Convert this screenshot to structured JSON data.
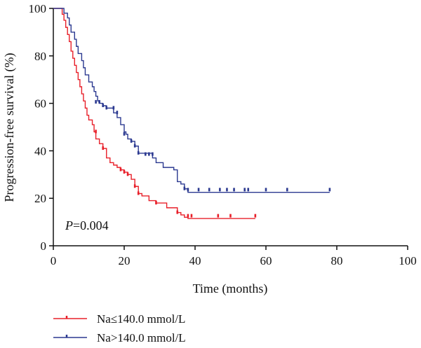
{
  "chart_data": {
    "type": "line",
    "subtype": "kaplan-meier",
    "title": "",
    "xlabel": "Time (months)",
    "ylabel": "Progression-free survival (%)",
    "xlim": [
      0,
      100
    ],
    "ylim": [
      0,
      100
    ],
    "xticks": [
      "0",
      "20",
      "40",
      "60",
      "80",
      "100"
    ],
    "yticks": [
      "0",
      "20",
      "40",
      "60",
      "80",
      "100"
    ],
    "grid": false,
    "legend_position": "bottom-left",
    "annotation": {
      "italic": "P",
      "rest": "=0.004"
    },
    "series": [
      {
        "name": "Na≤140.0 mmol/L",
        "color": "#e8202a",
        "steps": [
          [
            0,
            100
          ],
          [
            2,
            100
          ],
          [
            2.5,
            97.5
          ],
          [
            3,
            95
          ],
          [
            3.5,
            92
          ],
          [
            4,
            89
          ],
          [
            4.5,
            86
          ],
          [
            5,
            82
          ],
          [
            5.5,
            79
          ],
          [
            6,
            76
          ],
          [
            6.5,
            73
          ],
          [
            7,
            70
          ],
          [
            7.5,
            67
          ],
          [
            8,
            64
          ],
          [
            8.5,
            61
          ],
          [
            9,
            58
          ],
          [
            9.5,
            55
          ],
          [
            10,
            53
          ],
          [
            11,
            51
          ],
          [
            11.5,
            48
          ],
          [
            12,
            45
          ],
          [
            13,
            43
          ],
          [
            14,
            41
          ],
          [
            15,
            37
          ],
          [
            16,
            35
          ],
          [
            17,
            34
          ],
          [
            18,
            33
          ],
          [
            19,
            32
          ],
          [
            20,
            31
          ],
          [
            21,
            30
          ],
          [
            22,
            28
          ],
          [
            23,
            25
          ],
          [
            24,
            22
          ],
          [
            25,
            21
          ],
          [
            27,
            19
          ],
          [
            29,
            18
          ],
          [
            32,
            16
          ],
          [
            35,
            14
          ],
          [
            36,
            13
          ],
          [
            37,
            12
          ],
          [
            38,
            11.5
          ],
          [
            57,
            11.5
          ]
        ],
        "censored": [
          [
            12,
            48
          ],
          [
            14,
            41
          ],
          [
            19,
            32
          ],
          [
            20,
            31
          ],
          [
            21,
            30
          ],
          [
            23,
            25
          ],
          [
            24,
            22
          ],
          [
            29,
            18
          ],
          [
            35,
            14
          ],
          [
            38,
            12.5
          ],
          [
            39,
            12.5
          ],
          [
            46.5,
            12.5
          ],
          [
            50,
            12.5
          ],
          [
            57,
            12.5
          ]
        ]
      },
      {
        "name": "Na>140.0 mmol/L",
        "color": "#2b3990",
        "steps": [
          [
            0,
            100
          ],
          [
            2,
            100
          ],
          [
            3,
            98
          ],
          [
            4,
            96
          ],
          [
            4.5,
            93
          ],
          [
            5,
            90
          ],
          [
            6,
            87
          ],
          [
            6.5,
            84
          ],
          [
            7,
            81
          ],
          [
            8,
            78
          ],
          [
            8.5,
            75
          ],
          [
            9,
            72
          ],
          [
            10,
            69
          ],
          [
            11,
            67
          ],
          [
            11.5,
            65
          ],
          [
            12,
            63
          ],
          [
            12.5,
            61
          ],
          [
            13,
            60
          ],
          [
            14,
            59
          ],
          [
            15,
            58
          ],
          [
            17,
            56
          ],
          [
            18,
            54
          ],
          [
            19,
            51
          ],
          [
            20,
            48
          ],
          [
            20.5,
            47
          ],
          [
            21,
            45
          ],
          [
            22,
            44
          ],
          [
            23,
            42
          ],
          [
            24,
            39
          ],
          [
            28,
            37
          ],
          [
            29,
            35
          ],
          [
            31,
            33
          ],
          [
            34,
            32
          ],
          [
            35,
            27
          ],
          [
            36,
            26
          ],
          [
            37,
            24
          ],
          [
            38,
            22.5
          ],
          [
            78,
            22.5
          ]
        ],
        "censored": [
          [
            12,
            60.5
          ],
          [
            13,
            60.5
          ],
          [
            14,
            59
          ],
          [
            15,
            58
          ],
          [
            17,
            58
          ],
          [
            18,
            56
          ],
          [
            20,
            47
          ],
          [
            22,
            44
          ],
          [
            23,
            42
          ],
          [
            24,
            39
          ],
          [
            26,
            38.5
          ],
          [
            27,
            38.5
          ],
          [
            28,
            38.5
          ],
          [
            37,
            24
          ],
          [
            38,
            23.5
          ],
          [
            41,
            23.5
          ],
          [
            44,
            23.5
          ],
          [
            47,
            23.5
          ],
          [
            49,
            23.5
          ],
          [
            51,
            23.5
          ],
          [
            54,
            23.5
          ],
          [
            55,
            23.5
          ],
          [
            60,
            23.5
          ],
          [
            66,
            23.5
          ],
          [
            78,
            23.5
          ]
        ]
      }
    ]
  }
}
